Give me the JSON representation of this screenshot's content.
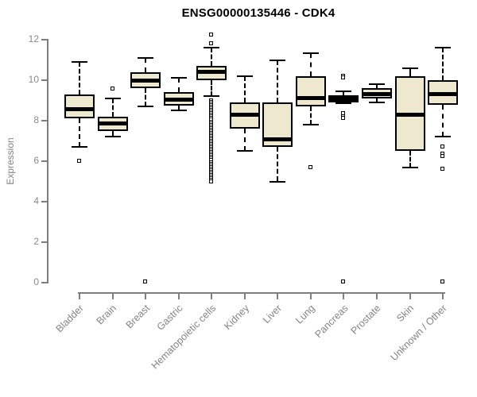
{
  "title": "ENSG00000135446 - CDK4",
  "y_axis": {
    "label": "Expression"
  },
  "colors": {
    "box_fill": "#EEE8CF",
    "box_border": "#000000",
    "median": "#000000",
    "whisker": "#000000",
    "outlier_fill": "#FFFFFF",
    "axis": "#7E7E7E",
    "tick_text": "#8A8A8A",
    "title_text": "#000000"
  },
  "chart_data": {
    "type": "boxplot",
    "title": "ENSG00000135446 - CDK4",
    "xlabel": "",
    "ylabel": "Expression",
    "ylim": [
      0,
      12
    ],
    "yticks": [
      0,
      2,
      4,
      6,
      8,
      10,
      12
    ],
    "grid": false,
    "legend": false,
    "categories": [
      "Bladder",
      "Brain",
      "Breast",
      "Gastric",
      "Hematopoietic cells",
      "Kidney",
      "Liver",
      "Lung",
      "Pancreas",
      "Prostate",
      "Skin",
      "Unknown / Other"
    ],
    "series": [
      {
        "label": "Bladder",
        "whisker_low": 6.7,
        "q1": 8.1,
        "median": 8.6,
        "q3": 9.3,
        "whisker_high": 10.9,
        "outliers": [
          6.0
        ]
      },
      {
        "label": "Brain",
        "whisker_low": 7.2,
        "q1": 7.5,
        "median": 7.9,
        "q3": 8.2,
        "whisker_high": 9.1,
        "outliers": [
          9.55
        ]
      },
      {
        "label": "Breast",
        "whisker_low": 8.7,
        "q1": 9.6,
        "median": 10.0,
        "q3": 10.4,
        "whisker_high": 11.1,
        "outliers": [
          0.05
        ]
      },
      {
        "label": "Gastric",
        "whisker_low": 8.5,
        "q1": 8.75,
        "median": 9.05,
        "q3": 9.4,
        "whisker_high": 10.1,
        "outliers": []
      },
      {
        "label": "Hematopoietic cells",
        "whisker_low": 9.2,
        "q1": 10.0,
        "median": 10.45,
        "q3": 10.7,
        "whisker_high": 11.6,
        "outliers": [
          12.25,
          11.8,
          8.98,
          8.9,
          8.82,
          8.74,
          8.66,
          8.58,
          8.5,
          8.42,
          8.34,
          8.26,
          8.18,
          8.1,
          8.02,
          7.94,
          7.86,
          7.78,
          7.7,
          7.62,
          7.54,
          7.46,
          7.38,
          7.3,
          7.22,
          7.14,
          7.06,
          6.98,
          6.9,
          6.82,
          6.74,
          6.66,
          6.58,
          6.5,
          6.42,
          6.34,
          6.26,
          6.18,
          6.1,
          6.02,
          5.94,
          5.86,
          5.78,
          5.7,
          5.62,
          5.54,
          5.46,
          5.38,
          5.3,
          5.22,
          5.14,
          5.06,
          4.98
        ]
      },
      {
        "label": "Kidney",
        "whisker_low": 6.5,
        "q1": 7.6,
        "median": 8.3,
        "q3": 8.9,
        "whisker_high": 10.2,
        "outliers": []
      },
      {
        "label": "Liver",
        "whisker_low": 5.0,
        "q1": 6.7,
        "median": 7.1,
        "q3": 8.9,
        "whisker_high": 11.0,
        "outliers": []
      },
      {
        "label": "Lung",
        "whisker_low": 7.8,
        "q1": 8.7,
        "median": 9.15,
        "q3": 10.2,
        "whisker_high": 11.35,
        "outliers": [
          5.7
        ]
      },
      {
        "label": "Pancreas",
        "whisker_low": 8.85,
        "q1": 8.9,
        "median": 9.1,
        "q3": 9.25,
        "whisker_high": 9.45,
        "outliers": [
          10.2,
          10.1,
          8.35,
          8.2,
          8.1,
          0.05
        ]
      },
      {
        "label": "Prostate",
        "whisker_low": 8.9,
        "q1": 9.1,
        "median": 9.35,
        "q3": 9.6,
        "whisker_high": 9.8,
        "outliers": []
      },
      {
        "label": "Skin",
        "whisker_low": 5.7,
        "q1": 6.5,
        "median": 8.3,
        "q3": 10.2,
        "whisker_high": 10.6,
        "outliers": []
      },
      {
        "label": "Unknown / Other",
        "whisker_low": 7.2,
        "q1": 8.8,
        "median": 9.35,
        "q3": 10.0,
        "whisker_high": 11.6,
        "outliers": [
          6.7,
          6.35,
          6.25,
          5.6,
          0.05
        ]
      }
    ]
  }
}
